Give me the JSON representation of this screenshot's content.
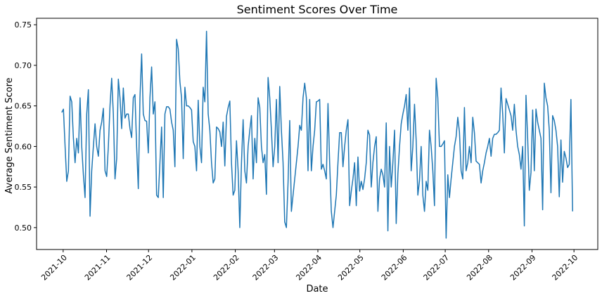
{
  "chart_data": {
    "type": "line",
    "title": "Sentiment Scores Over Time",
    "xlabel": "Date",
    "ylabel": "Average Sentiment Score",
    "grid": false,
    "legend": "none",
    "x_start": "2021-09-30",
    "x_end": "2022-09-30",
    "xlim": [
      "2021-09-12",
      "2022-10-18"
    ],
    "ylim": [
      0.473,
      0.758
    ],
    "x_ticks": [
      "2021-10",
      "2021-11",
      "2021-12",
      "2022-01",
      "2022-02",
      "2022-03",
      "2022-04",
      "2022-05",
      "2022-06",
      "2022-07",
      "2022-08",
      "2022-09",
      "2022-10"
    ],
    "y_ticks": [
      "0.50",
      "0.55",
      "0.60",
      "0.65",
      "0.70",
      "0.75"
    ],
    "series": [
      {
        "color": "#1f77b4",
        "values": [
          0.642,
          0.646,
          0.6,
          0.557,
          0.57,
          0.662,
          0.655,
          0.61,
          0.58,
          0.61,
          0.592,
          0.66,
          0.6,
          0.565,
          0.537,
          0.64,
          0.67,
          0.514,
          0.57,
          0.6,
          0.628,
          0.6,
          0.588,
          0.62,
          0.63,
          0.647,
          0.57,
          0.563,
          0.6,
          0.65,
          0.684,
          0.64,
          0.56,
          0.585,
          0.683,
          0.66,
          0.622,
          0.672,
          0.635,
          0.64,
          0.64,
          0.622,
          0.611,
          0.66,
          0.664,
          0.6,
          0.548,
          0.66,
          0.714,
          0.64,
          0.632,
          0.631,
          0.592,
          0.66,
          0.698,
          0.64,
          0.655,
          0.54,
          0.537,
          0.58,
          0.624,
          0.537,
          0.64,
          0.649,
          0.649,
          0.646,
          0.63,
          0.62,
          0.575,
          0.732,
          0.72,
          0.68,
          0.66,
          0.585,
          0.673,
          0.65,
          0.65,
          0.648,
          0.645,
          0.606,
          0.6,
          0.57,
          0.657,
          0.6,
          0.58,
          0.673,
          0.655,
          0.742,
          0.64,
          0.62,
          0.58,
          0.555,
          0.56,
          0.624,
          0.622,
          0.618,
          0.6,
          0.63,
          0.576,
          0.637,
          0.648,
          0.656,
          0.58,
          0.54,
          0.546,
          0.607,
          0.57,
          0.5,
          0.58,
          0.633,
          0.57,
          0.555,
          0.6,
          0.62,
          0.638,
          0.56,
          0.61,
          0.58,
          0.66,
          0.648,
          0.6,
          0.58,
          0.59,
          0.541,
          0.685,
          0.66,
          0.62,
          0.575,
          0.6,
          0.658,
          0.58,
          0.674,
          0.62,
          0.58,
          0.507,
          0.5,
          0.556,
          0.632,
          0.52,
          0.54,
          0.56,
          0.58,
          0.6,
          0.626,
          0.62,
          0.66,
          0.678,
          0.66,
          0.57,
          0.658,
          0.57,
          0.6,
          0.62,
          0.655,
          0.656,
          0.658,
          0.572,
          0.578,
          0.57,
          0.56,
          0.653,
          0.58,
          0.52,
          0.5,
          0.52,
          0.54,
          0.58,
          0.617,
          0.617,
          0.575,
          0.6,
          0.62,
          0.633,
          0.527,
          0.545,
          0.56,
          0.58,
          0.527,
          0.587,
          0.545,
          0.557,
          0.547,
          0.56,
          0.58,
          0.62,
          0.614,
          0.55,
          0.58,
          0.6,
          0.612,
          0.52,
          0.56,
          0.572,
          0.565,
          0.55,
          0.629,
          0.496,
          0.6,
          0.55,
          0.58,
          0.62,
          0.505,
          0.566,
          0.6,
          0.628,
          0.64,
          0.65,
          0.664,
          0.62,
          0.672,
          0.57,
          0.6,
          0.652,
          0.607,
          0.54,
          0.558,
          0.6,
          0.54,
          0.52,
          0.557,
          0.546,
          0.62,
          0.6,
          0.57,
          0.527,
          0.684,
          0.66,
          0.6,
          0.6,
          0.603,
          0.607,
          0.487,
          0.565,
          0.537,
          0.56,
          0.58,
          0.6,
          0.612,
          0.636,
          0.618,
          0.57,
          0.56,
          0.648,
          0.57,
          0.58,
          0.6,
          0.58,
          0.636,
          0.617,
          0.582,
          0.58,
          0.578,
          0.555,
          0.57,
          0.58,
          0.592,
          0.6,
          0.61,
          0.588,
          0.61,
          0.615,
          0.615,
          0.617,
          0.62,
          0.672,
          0.64,
          0.592,
          0.659,
          0.652,
          0.645,
          0.638,
          0.62,
          0.652,
          0.62,
          0.6,
          0.59,
          0.572,
          0.6,
          0.502,
          0.663,
          0.61,
          0.546,
          0.568,
          0.645,
          0.57,
          0.646,
          0.63,
          0.62,
          0.61,
          0.522,
          0.678,
          0.66,
          0.65,
          0.62,
          0.543,
          0.638,
          0.632,
          0.62,
          0.6,
          0.538,
          0.608,
          0.556,
          0.594,
          0.586,
          0.574,
          0.578,
          0.658,
          0.52
        ]
      }
    ]
  }
}
